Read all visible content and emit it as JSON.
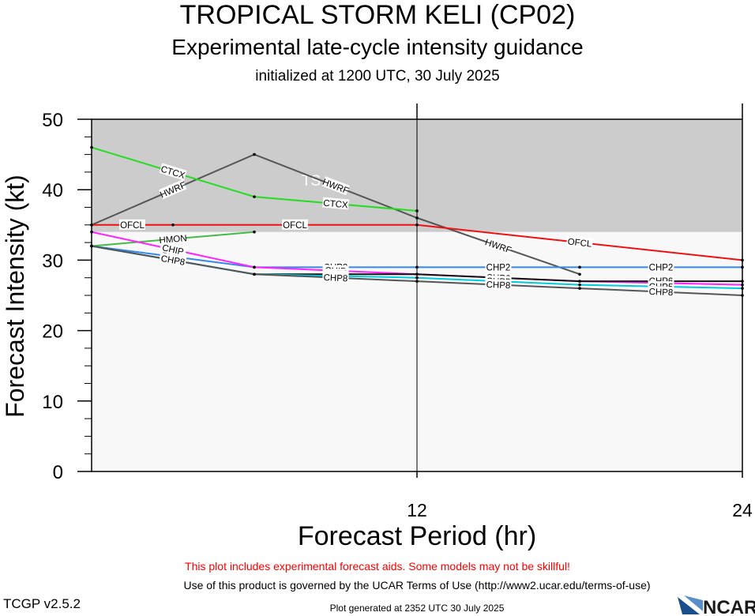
{
  "header": {
    "title": "TROPICAL STORM KELI (CP02)",
    "subtitle": "Experimental late-cycle intensity guidance",
    "initialized": "initialized at 1200 UTC, 30 July 2025"
  },
  "footer": {
    "warning": "This plot includes experimental forecast aids. Some models may not be skillful!",
    "terms": "Use of this product is governed by the UCAR Terms of Use (http://www2.ucar.edu/terms-of-use)",
    "version": "TCGP v2.5.2",
    "generated": "Plot generated at 2352 UTC   30 July 2025",
    "logo_text": "NCAR"
  },
  "chart_data": {
    "type": "line",
    "xlabel": "Forecast Period (hr)",
    "ylabel": "Forecast Intensity (kt)",
    "xlim": [
      0,
      24
    ],
    "ylim": [
      0,
      50
    ],
    "x_ticks": [
      12,
      24
    ],
    "y_ticks": [
      0,
      10,
      20,
      30,
      40,
      50
    ],
    "band": {
      "from": 34,
      "to": 50,
      "label": "TS",
      "color": "#cccccc"
    },
    "band_below_color": "#f8f8f8",
    "series": [
      {
        "name": "HWRF",
        "color": "#555555",
        "x": [
          0,
          6,
          12,
          18
        ],
        "y": [
          35,
          45,
          36,
          28
        ],
        "labels": [
          "HWRF",
          "HWRF",
          "HWRF"
        ]
      },
      {
        "name": "CTCX",
        "color": "#22dd22",
        "x": [
          0,
          6,
          12
        ],
        "y": [
          46,
          39,
          37
        ],
        "labels": [
          "CTCX",
          "CTCX"
        ]
      },
      {
        "name": "OFCL",
        "color": "#ee1111",
        "x": [
          0,
          3,
          12,
          24
        ],
        "y": [
          35,
          35,
          35,
          30
        ],
        "labels": [
          "OFCL",
          "OFCL",
          "OFCL",
          "OFCL"
        ]
      },
      {
        "name": "HMON",
        "color": "#44bb44",
        "x": [
          0,
          6
        ],
        "y": [
          32,
          34
        ],
        "labels": [
          "HMON"
        ]
      },
      {
        "name": "CHP2",
        "color": "#3388ee",
        "x": [
          0,
          6,
          12,
          18,
          24
        ],
        "y": [
          32,
          29,
          29,
          29,
          29
        ],
        "labels": [
          "CHP2",
          "CHP2",
          "CHP2",
          "CHP2"
        ]
      },
      {
        "name": "CHIP",
        "color": "#ff22ff",
        "x": [
          0,
          6,
          12,
          18,
          24
        ],
        "y": [
          34,
          29,
          28,
          27,
          26.5
        ],
        "labels": [
          "CHIP",
          "CHIP",
          "CHIP",
          "CHIP"
        ]
      },
      {
        "name": "CHP6",
        "color": "#111111",
        "x": [
          0,
          6,
          12,
          18,
          24
        ],
        "y": [
          32,
          28,
          28,
          27,
          27
        ],
        "labels": [
          "CHP6",
          "CHP6",
          "CHP6",
          "CHP6"
        ]
      },
      {
        "name": "CHP5",
        "color": "#00ccdd",
        "x": [
          0,
          6,
          12,
          18,
          24
        ],
        "y": [
          32,
          28,
          27.5,
          26.5,
          26
        ],
        "labels": [
          "CHP5",
          "CHP5",
          "CHP5",
          "CHP5"
        ]
      },
      {
        "name": "CHP8",
        "color": "#555555",
        "x": [
          0,
          6,
          12,
          18,
          24
        ],
        "y": [
          32,
          28,
          27,
          26,
          25
        ],
        "labels": [
          "CHP8",
          "CHP8",
          "CHP8",
          "CHP8"
        ]
      }
    ]
  }
}
